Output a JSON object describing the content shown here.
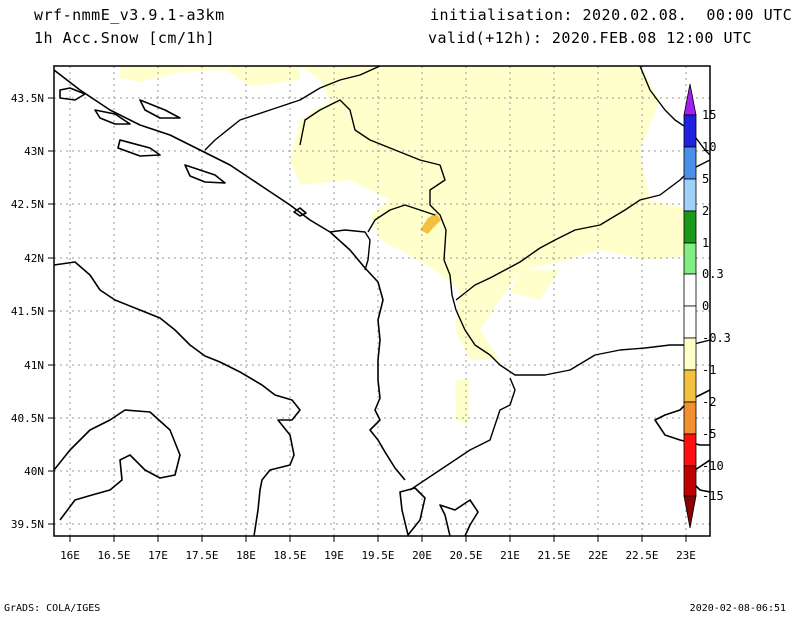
{
  "header": {
    "model": "wrf-nmmE_v3.9.1-a3km",
    "field": "1h Acc.Snow [cm/1h]",
    "initialisation": "initialisation: 2020.02.08.  00:00 UTC",
    "valid": "valid(+12h): 2020.FEB.08 12:00 UTC"
  },
  "axes": {
    "lat_labels": [
      "43.5N",
      "43N",
      "42.5N",
      "42N",
      "41.5N",
      "41N",
      "40.5N",
      "40N",
      "39.5N"
    ],
    "lon_labels": [
      "16E",
      "16.5E",
      "17E",
      "17.5E",
      "18E",
      "18.5E",
      "19E",
      "19.5E",
      "20E",
      "20.5E",
      "21E",
      "21.5E",
      "22E",
      "22.5E",
      "23E"
    ]
  },
  "colorbar": {
    "labels": [
      "15",
      "10",
      "5",
      "2",
      "1",
      "0.3",
      "0",
      "-0.3",
      "-1",
      "-2",
      "-5",
      "-10",
      "-15"
    ],
    "colors": [
      "#a020f0",
      "#2020e0",
      "#4a90e8",
      "#9fd0f7",
      "#1a9a1a",
      "#80ee80",
      "#ffffff",
      "#ffffff",
      "#ffffc8",
      "#f4c040",
      "#f09030",
      "#ff1010",
      "#c00000",
      "#8b0000"
    ]
  },
  "map_colors": {
    "light_snow": "#ffffcc",
    "moderate_snow": "#f4c040"
  },
  "footer": {
    "left": "GrADS: COLA/IGES",
    "right": "2020-02-08-06:51"
  }
}
